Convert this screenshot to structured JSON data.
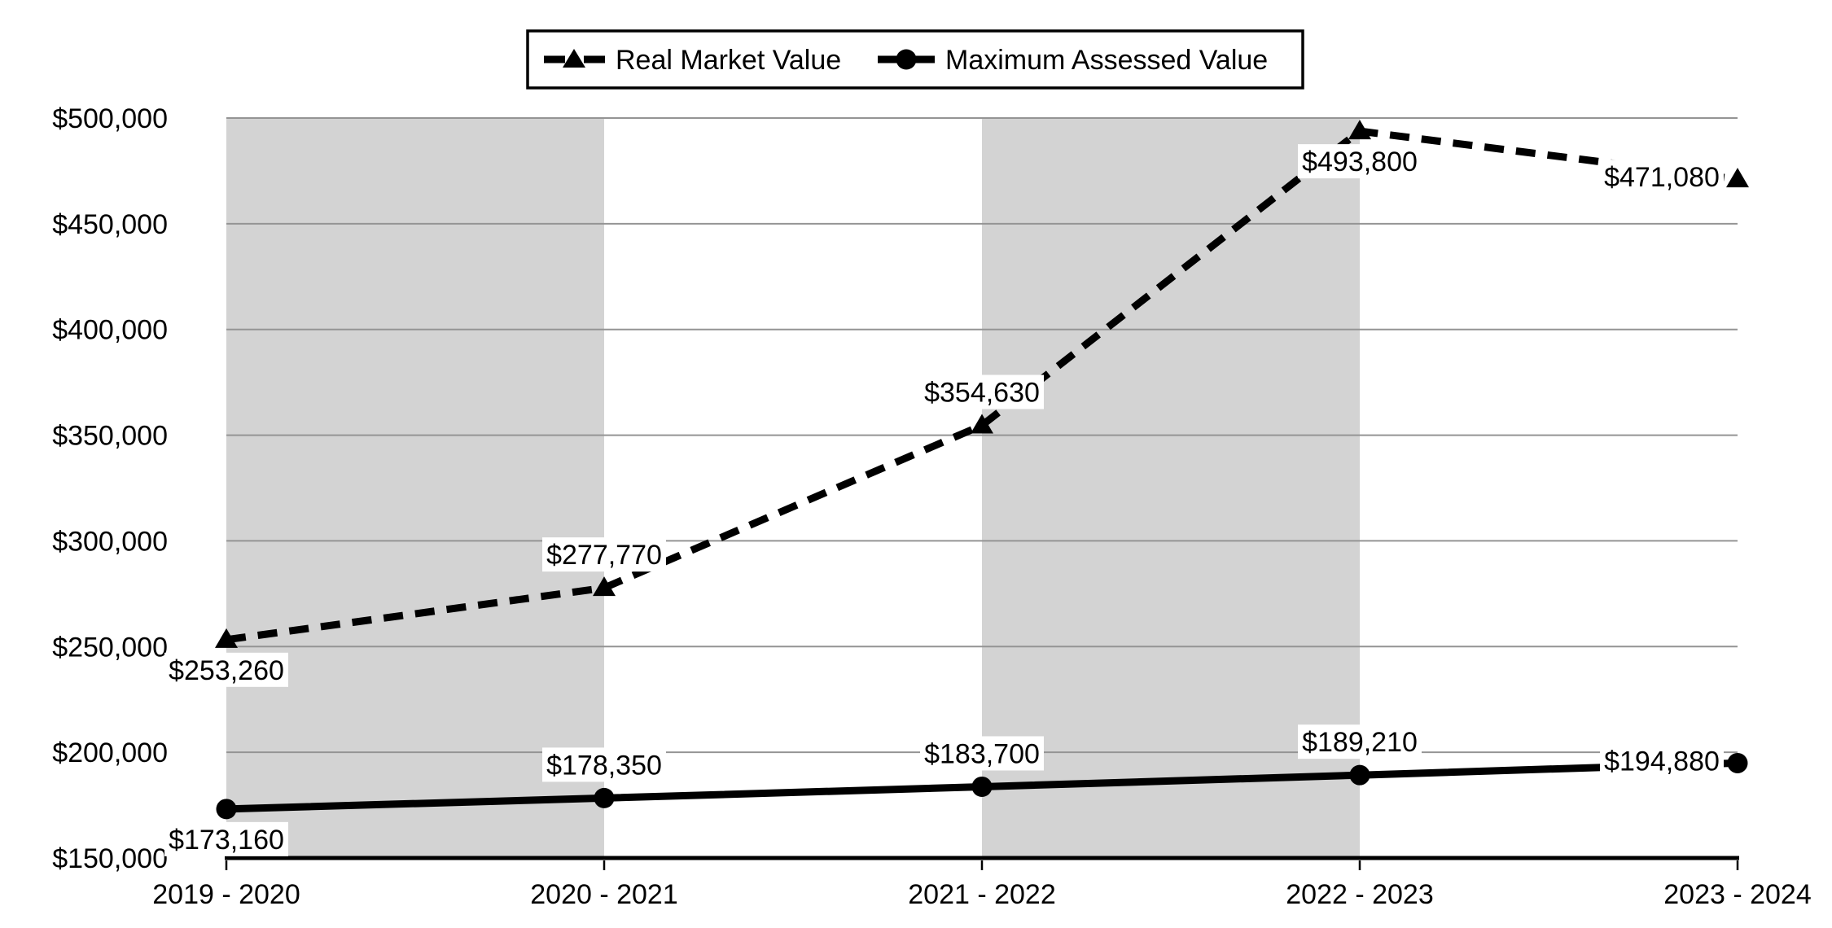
{
  "chart_data": {
    "type": "line",
    "title": "",
    "categories": [
      "2019 - 2020",
      "2020 - 2021",
      "2021 - 2022",
      "2022 - 2023",
      "2023 - 2024"
    ],
    "series": [
      {
        "name": "Real Market Value",
        "line_style": "dashed",
        "marker": "triangle",
        "values": [
          253260,
          277770,
          354630,
          493800,
          471080
        ],
        "point_labels": [
          "$253,260",
          "$277,770",
          "$354,630",
          "$493,800",
          "$471,080"
        ],
        "label_positions": [
          "below",
          "above",
          "above",
          "below",
          "left"
        ]
      },
      {
        "name": "Maximum Assessed Value",
        "line_style": "solid",
        "marker": "circle",
        "values": [
          173160,
          178350,
          183700,
          189210,
          194880
        ],
        "point_labels": [
          "$173,160",
          "$178,350",
          "$183,700",
          "$189,210",
          "$194,880"
        ],
        "label_positions": [
          "below",
          "above",
          "above",
          "above",
          "left"
        ]
      }
    ],
    "y_axis": {
      "min": 150000,
      "max": 500000,
      "step": 50000,
      "tick_labels": [
        "$150,000",
        "$200,000",
        "$250,000",
        "$300,000",
        "$350,000",
        "$400,000",
        "$450,000",
        "$500,000"
      ]
    },
    "x_axis": {
      "tick_labels": [
        "2019 - 2020",
        "2020 - 2021",
        "2021 - 2022",
        "2022 - 2023",
        "2023 - 2024"
      ]
    },
    "legend": {
      "position": "top"
    },
    "plot": {
      "grid": true,
      "banded_column_pairs": [
        [
          0,
          1
        ],
        [
          2,
          3
        ]
      ],
      "band_color": "#d3d3d3",
      "gridline_color": "#949494",
      "axis_color": "#000000",
      "background": "#ffffff",
      "text_color": "#000000",
      "ylim": [
        150000,
        500000
      ]
    }
  }
}
